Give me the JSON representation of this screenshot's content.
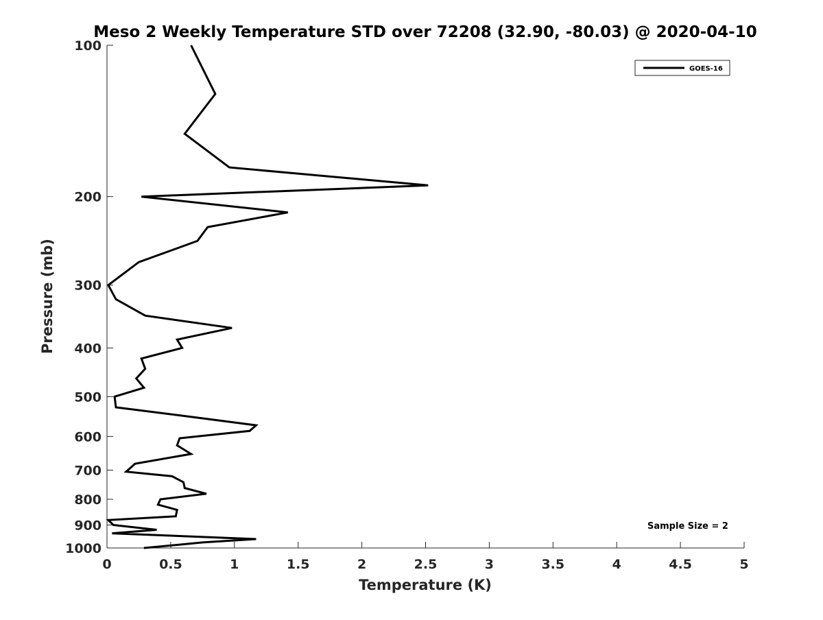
{
  "chart_data": {
    "type": "line",
    "title": "Meso 2 Weekly Temperature STD over 72208 (32.90, -80.03) @ 2020-04-10",
    "xlabel": "Temperature (K)",
    "ylabel": "Pressure (mb)",
    "xlim": [
      0,
      5
    ],
    "ylim": [
      100,
      1000
    ],
    "yscale": "log",
    "y_reversed": true,
    "xticks": [
      0,
      0.5,
      1,
      1.5,
      2,
      2.5,
      3,
      3.5,
      4,
      4.5,
      5
    ],
    "xtick_labels": [
      "0",
      "0.5",
      "1",
      "1.5",
      "2",
      "2.5",
      "3",
      "3.5",
      "4",
      "4.5",
      "5"
    ],
    "yticks": [
      100,
      200,
      300,
      400,
      500,
      600,
      700,
      800,
      900,
      1000
    ],
    "ytick_labels": [
      "100",
      "200",
      "300",
      "400",
      "500",
      "600",
      "700",
      "800",
      "900",
      "1000"
    ],
    "grid": false,
    "legend_position": "top-right",
    "annotation": "Sample Size = 2",
    "series": [
      {
        "name": "GOES-16",
        "color": "#000000",
        "points": [
          [
            0.66,
            100
          ],
          [
            0.85,
            125
          ],
          [
            0.61,
            150
          ],
          [
            0.96,
            175
          ],
          [
            2.52,
            190
          ],
          [
            0.27,
            200
          ],
          [
            1.42,
            215
          ],
          [
            0.79,
            230
          ],
          [
            0.71,
            245
          ],
          [
            0.25,
            270
          ],
          [
            0.01,
            300
          ],
          [
            0.07,
            320
          ],
          [
            0.3,
            345
          ],
          [
            0.98,
            365
          ],
          [
            0.55,
            385
          ],
          [
            0.59,
            400
          ],
          [
            0.27,
            420
          ],
          [
            0.3,
            440
          ],
          [
            0.23,
            460
          ],
          [
            0.29,
            480
          ],
          [
            0.06,
            500
          ],
          [
            0.07,
            525
          ],
          [
            0.7,
            550
          ],
          [
            1.17,
            570
          ],
          [
            1.12,
            585
          ],
          [
            0.57,
            605
          ],
          [
            0.55,
            625
          ],
          [
            0.66,
            650
          ],
          [
            0.22,
            680
          ],
          [
            0.15,
            705
          ],
          [
            0.51,
            720
          ],
          [
            0.6,
            740
          ],
          [
            0.61,
            760
          ],
          [
            0.78,
            780
          ],
          [
            0.42,
            800
          ],
          [
            0.4,
            820
          ],
          [
            0.55,
            840
          ],
          [
            0.54,
            865
          ],
          [
            0.01,
            880
          ],
          [
            0.05,
            900
          ],
          [
            0.39,
            920
          ],
          [
            0.04,
            935
          ],
          [
            1.17,
            960
          ],
          [
            0.75,
            975
          ],
          [
            0.29,
            1000
          ]
        ]
      }
    ]
  }
}
